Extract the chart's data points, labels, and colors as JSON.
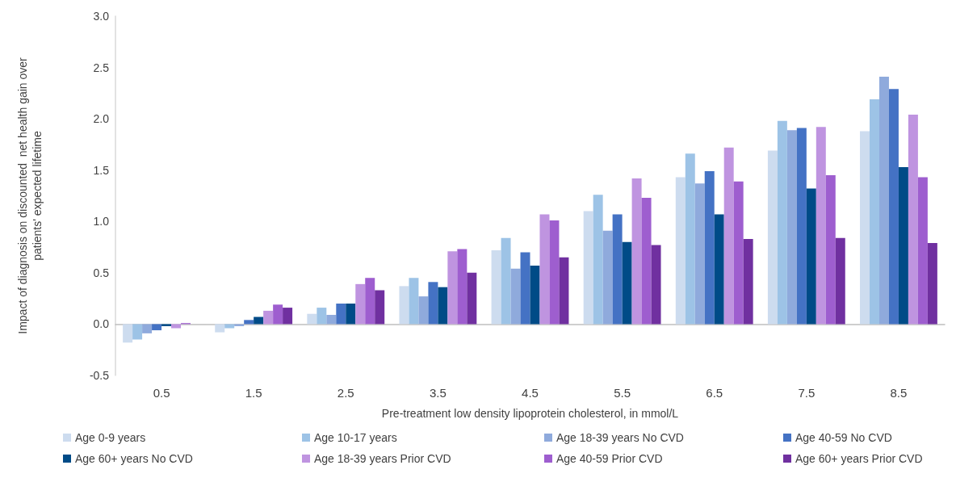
{
  "chart_data": {
    "type": "bar",
    "xlabel": "Pre-treatment low density lipoprotein cholesterol, in mmol/L",
    "ylabel": "Impact of diagnosis on discounted  net health gain over patients' expected lifetime",
    "categories": [
      "0.5",
      "1.5",
      "2.5",
      "3.5",
      "4.5",
      "5.5",
      "6.5",
      "7.5",
      "8.5"
    ],
    "series": [
      {
        "name": "Age 0-9 years",
        "color": "#cddcef",
        "values": [
          -0.18,
          -0.08,
          0.1,
          0.37,
          0.72,
          1.1,
          1.43,
          1.69,
          1.88
        ]
      },
      {
        "name": "Age 10-17 years",
        "color": "#9dc3e6",
        "values": [
          -0.15,
          -0.04,
          0.16,
          0.45,
          0.84,
          1.26,
          1.66,
          1.98,
          2.19
        ]
      },
      {
        "name": "Age 18-39 years No CVD",
        "color": "#8faadc",
        "values": [
          -0.09,
          -0.02,
          0.09,
          0.27,
          0.54,
          0.91,
          1.37,
          1.89,
          2.41
        ]
      },
      {
        "name": "Age 40-59 No CVD",
        "color": "#4472c4",
        "values": [
          -0.06,
          0.04,
          0.2,
          0.41,
          0.7,
          1.07,
          1.49,
          1.91,
          2.29
        ]
      },
      {
        "name": "Age 60+ years No CVD",
        "color": "#004b87",
        "values": [
          -0.02,
          0.07,
          0.2,
          0.36,
          0.57,
          0.8,
          1.07,
          1.32,
          1.53
        ]
      },
      {
        "name": "Age 18-39 years Prior CVD",
        "color": "#bf94e0",
        "values": [
          -0.04,
          0.13,
          0.39,
          0.71,
          1.07,
          1.42,
          1.72,
          1.92,
          2.04
        ]
      },
      {
        "name": "Age 40-59 Prior CVD",
        "color": "#9e5ecf",
        "values": [
          0.01,
          0.19,
          0.45,
          0.73,
          1.01,
          1.23,
          1.39,
          1.45,
          1.43
        ]
      },
      {
        "name": "Age 60+ years Prior CVD",
        "color": "#7030a0",
        "values": [
          0.0,
          0.16,
          0.33,
          0.5,
          0.65,
          0.77,
          0.83,
          0.84,
          0.79
        ]
      }
    ],
    "ylim": [
      -0.5,
      3.0
    ],
    "yticks": [
      -0.5,
      {
        "value": 0,
        "label": "0.0"
      },
      0.5,
      {
        "value": 1,
        "label": "1.0"
      },
      1.5,
      {
        "value": 2,
        "label": "2.0"
      },
      2.5,
      {
        "value": 3,
        "label": "3.0"
      }
    ],
    "legend": "bottom"
  }
}
